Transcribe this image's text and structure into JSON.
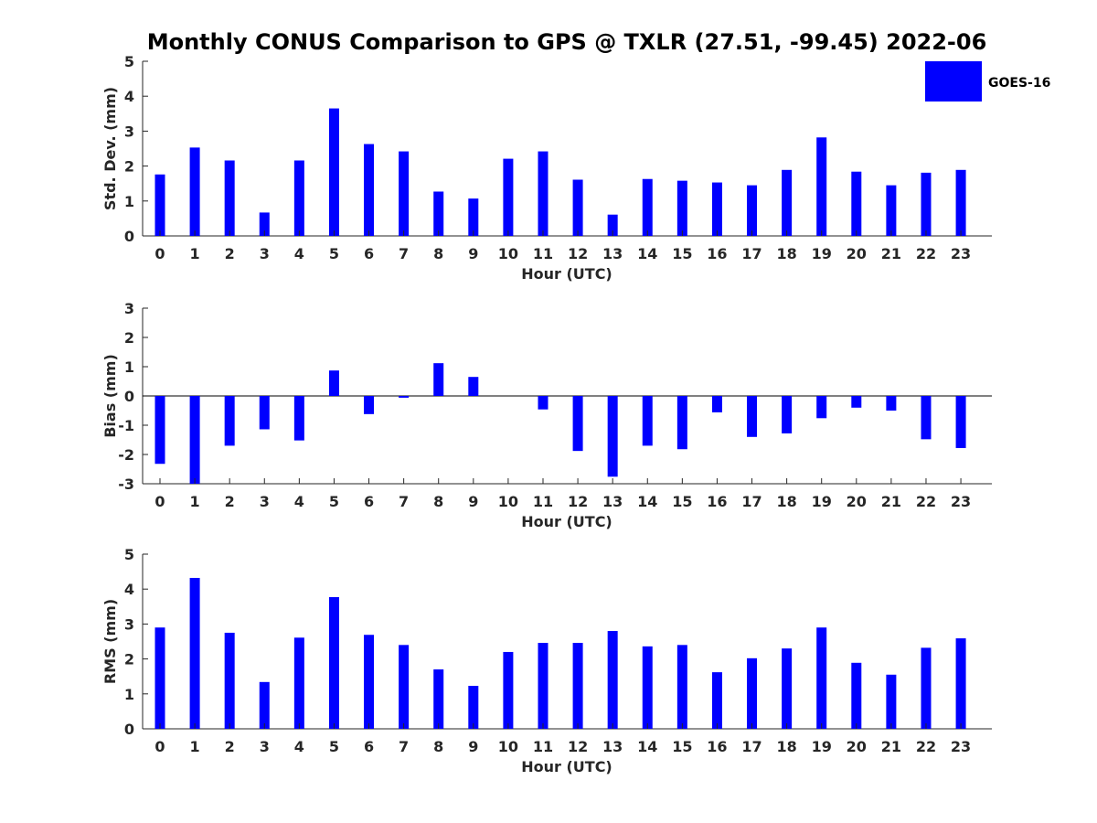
{
  "figure_title": "Monthly CONUS Comparison to GPS @ TXLR (27.51, -99.45) 2022-06",
  "legend": {
    "label": "GOES-16",
    "color": "#0000ff"
  },
  "chart_data": [
    {
      "type": "bar",
      "id": "std",
      "title": "Monthly CONUS Comparison to GPS @ TXLR (27.51, -99.45) 2022-06",
      "xlabel": "Hour (UTC)",
      "ylabel": "Std. Dev. (mm)",
      "ylim": [
        0,
        5
      ],
      "yticks": [
        0,
        1,
        2,
        3,
        4,
        5
      ],
      "categories": [
        "0",
        "1",
        "2",
        "3",
        "4",
        "5",
        "6",
        "7",
        "8",
        "9",
        "10",
        "11",
        "12",
        "13",
        "14",
        "15",
        "16",
        "17",
        "18",
        "19",
        "20",
        "21",
        "22",
        "23"
      ],
      "series": [
        {
          "name": "GOES-16",
          "color": "#0000ff",
          "values": [
            1.76,
            2.53,
            2.16,
            0.67,
            2.16,
            3.65,
            2.63,
            2.42,
            1.27,
            1.07,
            2.21,
            2.42,
            1.61,
            0.61,
            1.63,
            1.58,
            1.53,
            1.45,
            1.89,
            2.82,
            1.84,
            1.45,
            1.81,
            1.89
          ]
        }
      ]
    },
    {
      "type": "bar",
      "id": "bias",
      "xlabel": "Hour (UTC)",
      "ylabel": "Bias (mm)",
      "ylim": [
        -3,
        3
      ],
      "yticks": [
        -3,
        -2,
        -1,
        0,
        1,
        2,
        3
      ],
      "categories": [
        "0",
        "1",
        "2",
        "3",
        "4",
        "5",
        "6",
        "7",
        "8",
        "9",
        "10",
        "11",
        "12",
        "13",
        "14",
        "15",
        "16",
        "17",
        "18",
        "19",
        "20",
        "21",
        "22",
        "23"
      ],
      "series": [
        {
          "name": "GOES-16",
          "color": "#0000ff",
          "values": [
            -2.32,
            -3.0,
            -1.7,
            -1.14,
            -1.52,
            0.87,
            -0.62,
            -0.06,
            1.12,
            0.65,
            0.0,
            -0.46,
            -1.88,
            -2.76,
            -1.7,
            -1.82,
            -0.56,
            -1.4,
            -1.28,
            -0.76,
            -0.4,
            -0.5,
            -1.48,
            -1.78
          ]
        }
      ]
    },
    {
      "type": "bar",
      "id": "rms",
      "xlabel": "Hour (UTC)",
      "ylabel": "RMS (mm)",
      "ylim": [
        0,
        5
      ],
      "yticks": [
        0,
        1,
        2,
        3,
        4,
        5
      ],
      "categories": [
        "0",
        "1",
        "2",
        "3",
        "4",
        "5",
        "6",
        "7",
        "8",
        "9",
        "10",
        "11",
        "12",
        "13",
        "14",
        "15",
        "16",
        "17",
        "18",
        "19",
        "20",
        "21",
        "22",
        "23"
      ],
      "series": [
        {
          "name": "GOES-16",
          "color": "#0000ff",
          "values": [
            2.9,
            4.32,
            2.75,
            1.34,
            2.61,
            3.77,
            2.69,
            2.4,
            1.7,
            1.23,
            2.2,
            2.46,
            2.46,
            2.8,
            2.36,
            2.4,
            1.62,
            2.02,
            2.3,
            2.9,
            1.89,
            1.55,
            2.32,
            2.59
          ]
        }
      ]
    }
  ]
}
